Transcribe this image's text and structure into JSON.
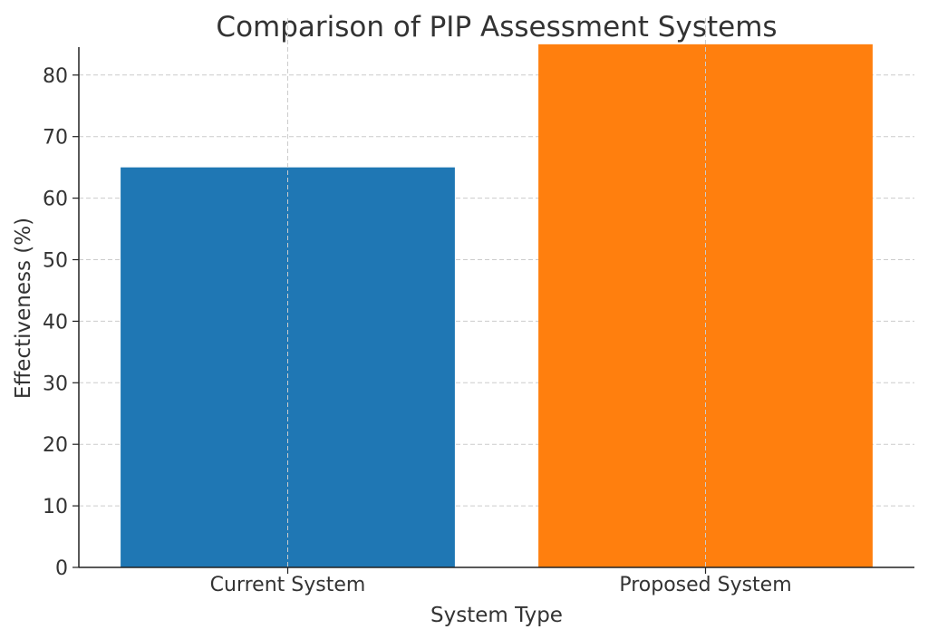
{
  "chart_data": {
    "type": "bar",
    "title": "Comparison of PIP Assessment Systems",
    "xlabel": "System Type",
    "ylabel": "Effectiveness (%)",
    "categories": [
      "Current System",
      "Proposed System"
    ],
    "values": [
      65,
      85
    ],
    "colors": [
      "#1f77b4",
      "#ff7f0e"
    ],
    "ylim": [
      0,
      89.25
    ],
    "yticks": [
      0,
      10,
      20,
      30,
      40,
      50,
      60,
      70,
      80
    ],
    "grid": true,
    "legend": "none"
  }
}
